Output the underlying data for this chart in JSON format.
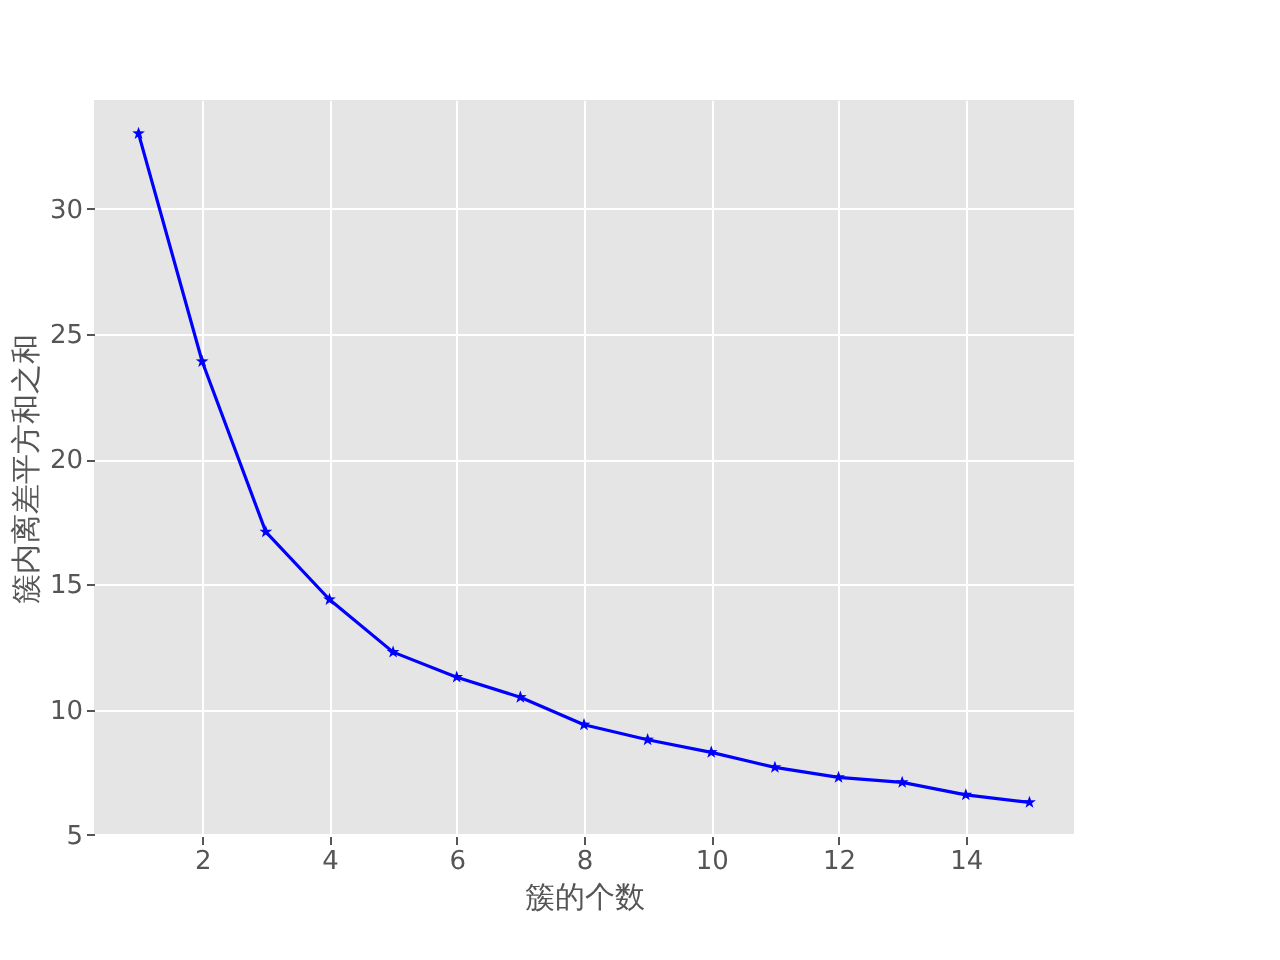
{
  "chart_data": {
    "type": "line",
    "xlabel": "簇的个数",
    "ylabel": "簇内离差平方和之和",
    "x": [
      1,
      2,
      3,
      4,
      5,
      6,
      7,
      8,
      9,
      10,
      11,
      12,
      13,
      14,
      15
    ],
    "series": [
      {
        "color": "#0000ff",
        "values": [
          33.0,
          23.9,
          17.1,
          14.4,
          12.3,
          11.3,
          10.5,
          9.4,
          8.8,
          8.3,
          7.7,
          7.3,
          7.1,
          6.6,
          6.3
        ]
      }
    ],
    "xlim": [
      0.3,
      15.7
    ],
    "ylim": [
      4.96,
      34.34
    ],
    "xticks": [
      2,
      4,
      6,
      8,
      10,
      12,
      14
    ],
    "yticks": [
      5,
      10,
      15,
      20,
      25,
      30
    ],
    "grid": true,
    "marker": "star",
    "line_style": "solid"
  }
}
